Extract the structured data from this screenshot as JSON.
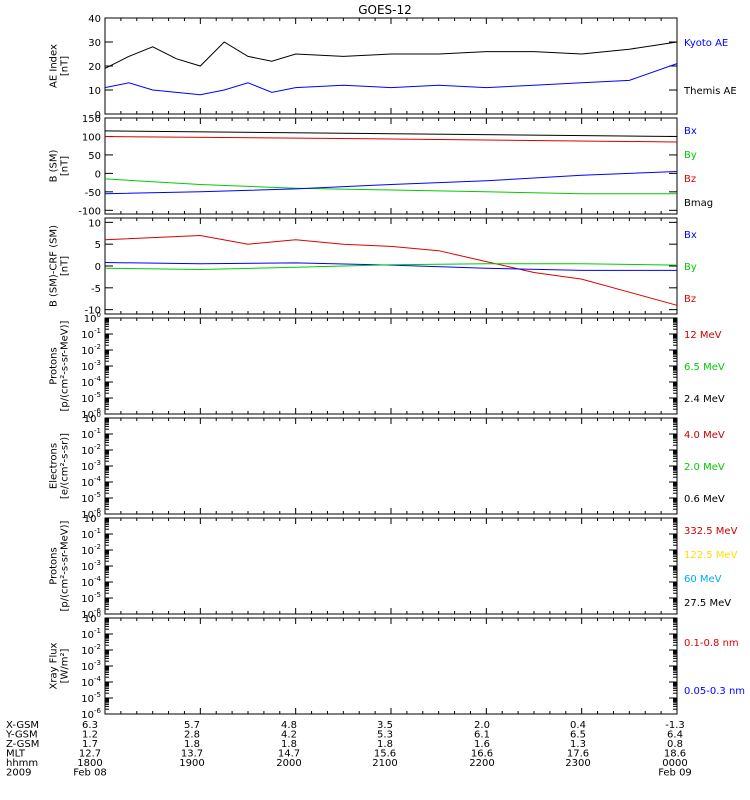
{
  "title": "GOES-12",
  "chart_data": [
    {
      "type": "line",
      "ylabel_lines": [
        "AE Index",
        "[nT]"
      ],
      "yticks": [
        "0",
        "10",
        "20",
        "30",
        "40"
      ],
      "ylim": [
        0,
        40
      ],
      "x_range": [
        0,
        6
      ],
      "legend": [
        {
          "text": "Kyoto AE",
          "color": "#0000ff"
        },
        {
          "text": "Themis AE",
          "color": "#000000"
        }
      ],
      "series": [
        {
          "color": "#000000",
          "x": [
            0.0,
            0.25,
            0.5,
            0.75,
            1.0,
            1.25,
            1.5,
            1.75,
            2.0,
            2.5,
            3.0,
            3.5,
            4.0,
            4.5,
            5.0,
            5.5,
            6.0
          ],
          "values": [
            19,
            24,
            28,
            23,
            20,
            30,
            24,
            22,
            25,
            24,
            25,
            25,
            26,
            26,
            25,
            27,
            30
          ]
        },
        {
          "color": "#0000ff",
          "x": [
            0.0,
            0.25,
            0.5,
            0.75,
            1.0,
            1.25,
            1.5,
            1.75,
            2.0,
            2.5,
            3.0,
            3.5,
            4.0,
            4.5,
            5.0,
            5.5,
            6.0
          ],
          "values": [
            11,
            13,
            10,
            9,
            8,
            10,
            13,
            9,
            11,
            12,
            11,
            12,
            11,
            12,
            13,
            14,
            21
          ]
        }
      ]
    },
    {
      "type": "line",
      "ylabel_lines": [
        "B (SM)",
        "[nT]"
      ],
      "yticks": [
        "-100",
        "-50",
        "0",
        "50",
        "100",
        "150"
      ],
      "ylim": [
        -110,
        150
      ],
      "x_range": [
        0,
        6
      ],
      "legend": [
        {
          "text": "Bx",
          "color": "#0000ff"
        },
        {
          "text": "By",
          "color": "#00cc00"
        },
        {
          "text": "Bz",
          "color": "#dd0000"
        },
        {
          "text": "Bmag",
          "color": "#000000"
        }
      ],
      "series": [
        {
          "color": "#000000",
          "x": [
            0,
            6
          ],
          "values": [
            115,
            100
          ]
        },
        {
          "color": "#dd0000",
          "x": [
            0,
            3,
            6
          ],
          "values": [
            100,
            93,
            85
          ]
        },
        {
          "color": "#00cc00",
          "x": [
            0,
            1,
            2,
            3,
            4,
            5,
            6
          ],
          "values": [
            -15,
            -30,
            -40,
            -45,
            -50,
            -55,
            -55
          ]
        },
        {
          "color": "#0000ff",
          "x": [
            0,
            1,
            2,
            3,
            4,
            5,
            6
          ],
          "values": [
            -55,
            -50,
            -42,
            -30,
            -20,
            -5,
            5
          ]
        }
      ]
    },
    {
      "type": "line",
      "ylabel_lines": [
        "B (SM)-CRF (SM)",
        "[nT]"
      ],
      "yticks": [
        "-10",
        "-5",
        "0",
        "5",
        "10"
      ],
      "ylim": [
        -11,
        11
      ],
      "x_range": [
        0,
        6
      ],
      "legend": [
        {
          "text": "Bx",
          "color": "#0000ff"
        },
        {
          "text": "By",
          "color": "#00cc00"
        },
        {
          "text": "Bz",
          "color": "#dd0000"
        }
      ],
      "series": [
        {
          "color": "#dd0000",
          "x": [
            0,
            0.5,
            1.0,
            1.5,
            2.0,
            2.5,
            3.0,
            3.5,
            4.0,
            4.5,
            5.0,
            5.5,
            6.0
          ],
          "values": [
            6,
            6.5,
            7,
            5,
            6,
            5,
            4.5,
            3.5,
            1,
            -1.5,
            -3,
            -6,
            -9
          ]
        },
        {
          "color": "#0000ff",
          "x": [
            0,
            1,
            2,
            3,
            4,
            5,
            6
          ],
          "values": [
            0.8,
            0.5,
            0.7,
            0.2,
            -0.5,
            -1,
            -1
          ]
        },
        {
          "color": "#00cc00",
          "x": [
            0,
            1,
            2,
            3,
            4,
            5,
            6
          ],
          "values": [
            -0.5,
            -0.8,
            -0.3,
            0.3,
            0.5,
            0.5,
            0.2
          ]
        }
      ]
    },
    {
      "type": "line",
      "ylabel_lines": [
        "Protons",
        "[p/(cm²-s-sr-MeV)]"
      ],
      "ylim": [
        -6,
        0
      ],
      "log_scale": true,
      "legend": [
        {
          "text": "12 MeV",
          "color": "#cc0000"
        },
        {
          "text": "6.5 MeV",
          "color": "#00cc00"
        },
        {
          "text": "2.4 MeV",
          "color": "#000000"
        }
      ],
      "series": []
    },
    {
      "type": "line",
      "ylabel_lines": [
        "Electrons",
        "[e/(cm²-s-sr)]"
      ],
      "ylim": [
        -6,
        0
      ],
      "log_scale": true,
      "legend": [
        {
          "text": "4.0 MeV",
          "color": "#cc0000"
        },
        {
          "text": "2.0 MeV",
          "color": "#00cc00"
        },
        {
          "text": "0.6 MeV",
          "color": "#000000"
        }
      ],
      "series": []
    },
    {
      "type": "line",
      "ylabel_lines": [
        "Protons",
        "[p/(cm²-s-sr-MeV)]"
      ],
      "ylim": [
        -6,
        0
      ],
      "log_scale": true,
      "legend": [
        {
          "text": "332.5 MeV",
          "color": "#cc0000"
        },
        {
          "text": "122.5 MeV",
          "color": "#ffdd00"
        },
        {
          "text": "60 MeV",
          "color": "#00aaee"
        },
        {
          "text": "27.5 MeV",
          "color": "#000000"
        }
      ],
      "series": []
    },
    {
      "type": "line",
      "ylabel_lines": [
        "Xray  Flux",
        "[W/m²]"
      ],
      "ylim": [
        -6,
        0
      ],
      "log_scale": true,
      "legend": [
        {
          "text": "0.1-0.8 nm",
          "color": "#dd0000"
        },
        {
          "text": "0.05-0.3 nm",
          "color": "#0000ff"
        }
      ],
      "series": []
    }
  ],
  "x_axis": {
    "rows": [
      {
        "label": "X-GSM",
        "values": [
          "6.3",
          "5.7",
          "4.8",
          "3.5",
          "2.0",
          "0.4",
          "-1.3"
        ]
      },
      {
        "label": "Y-GSM",
        "values": [
          "1.2",
          "2.8",
          "4.2",
          "5.3",
          "6.1",
          "6.5",
          "6.4"
        ]
      },
      {
        "label": "Z-GSM",
        "values": [
          "1.7",
          "1.8",
          "1.8",
          "1.8",
          "1.6",
          "1.3",
          "0.8"
        ]
      },
      {
        "label": "MLT",
        "values": [
          "12.7",
          "13.7",
          "14.7",
          "15.6",
          "16.6",
          "17.6",
          "18.6"
        ]
      },
      {
        "label": "hhmm",
        "values": [
          "1800",
          "1900",
          "2000",
          "2100",
          "2200",
          "2300",
          "0000"
        ]
      }
    ],
    "year": "2009",
    "start_date": "Feb 08",
    "end_date": "Feb 09"
  }
}
